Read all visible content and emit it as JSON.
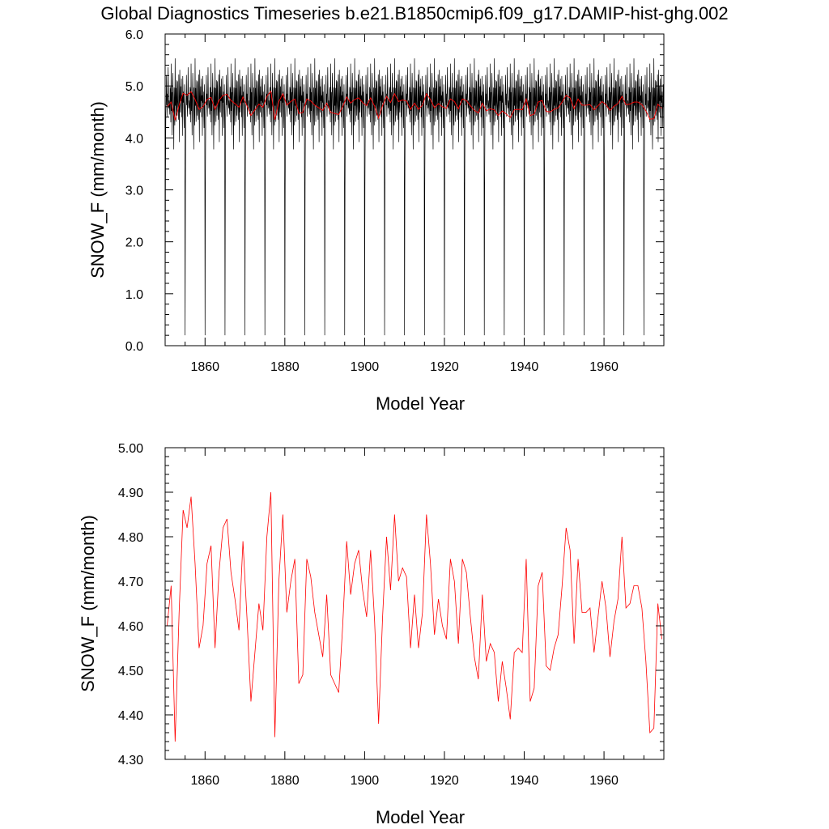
{
  "title": "Global Diagnostics Timeseries b.e21.B1850cmip6.f09_g17.DAMIP-hist-ghg.002",
  "colors": {
    "monthly": "#000000",
    "annual": "#ff0000",
    "axes": "#000000"
  },
  "chart_data": [
    {
      "type": "line",
      "xlabel": "Model Year",
      "ylabel": "SNOW_F (mm/month)",
      "xlim": [
        1850,
        1975
      ],
      "ylim": [
        0.0,
        6.0
      ],
      "xticks": [
        "1860",
        "1880",
        "1900",
        "1920",
        "1940",
        "1960"
      ],
      "yticks": [
        "0.0",
        "1.0",
        "2.0",
        "3.0",
        "4.0",
        "5.0",
        "6.0"
      ],
      "grid": false,
      "series": [
        {
          "kind": "monthly",
          "color": "#000000",
          "x_start": 1850,
          "step": 0.08333,
          "values": [
            0.2,
            3.06,
            4.42,
            4.72,
            5.21,
            4.63,
            4.85,
            4.41,
            4.78,
            5.36,
            4.82,
            4.57,
            4.72,
            4.61,
            4.45,
            4.98,
            4.92,
            4.3,
            5.43,
            4.52,
            4.88,
            4.05,
            4.79,
            5.25,
            4.84,
            4.52,
            3.78,
            4.97,
            4.68,
            4.24,
            5.53,
            4.62,
            4.96,
            4.31,
            4.77,
            5.11,
            4.43,
            5.09,
            4.71,
            4.55,
            4.35,
            5.22,
            4.76,
            3.92,
            5.31,
            4.66,
            4.49,
            4.99,
            4.71,
            5.14,
            4.4,
            4.82,
            4.04,
            5.19,
            4.68,
            4.89,
            4.55,
            4.19,
            5.03,
            4.6
          ]
        },
        {
          "kind": "annual",
          "color": "#ff0000",
          "x": [
            1850.5,
            1851.5,
            1852.5,
            1853.5,
            1854.5,
            1855.5,
            1856.5,
            1857.5,
            1858.5,
            1859.5,
            1860.5,
            1861.5,
            1862.5,
            1863.5,
            1864.5,
            1865.5,
            1866.5,
            1867.5,
            1868.5,
            1869.5,
            1870.5,
            1871.5,
            1872.5,
            1873.5,
            1874.5,
            1875.5,
            1876.5,
            1877.5,
            1878.5,
            1879.5,
            1880.5,
            1881.5,
            1882.5,
            1883.5,
            1884.5,
            1885.5,
            1886.5,
            1887.5,
            1888.5,
            1889.5,
            1890.5,
            1891.5,
            1892.5,
            1893.5,
            1894.5,
            1895.5,
            1896.5,
            1897.5,
            1898.5,
            1899.5,
            1900.5,
            1901.5,
            1902.5,
            1903.5,
            1904.5,
            1905.5,
            1906.5,
            1907.5,
            1908.5,
            1909.5,
            1910.5,
            1911.5,
            1912.5,
            1913.5,
            1914.5,
            1915.5,
            1916.5,
            1917.5,
            1918.5,
            1919.5,
            1920.5,
            1921.5,
            1922.5,
            1923.5,
            1924.5,
            1925.5,
            1926.5,
            1927.5,
            1928.5,
            1929.5,
            1930.5,
            1931.5,
            1932.5,
            1933.5,
            1934.5,
            1935.5,
            1936.5,
            1937.5,
            1938.5,
            1939.5,
            1940.5,
            1941.5,
            1942.5,
            1943.5,
            1944.5,
            1945.5,
            1946.5,
            1947.5,
            1948.5,
            1949.5,
            1950.5,
            1951.5,
            1952.5,
            1953.5,
            1954.5,
            1955.5,
            1956.5,
            1957.5,
            1958.5,
            1959.5,
            1960.5,
            1961.5,
            1962.5,
            1963.5,
            1964.5,
            1965.5,
            1966.5,
            1967.5,
            1968.5,
            1969.5,
            1970.5,
            1971.5,
            1972.5,
            1973.5,
            1974.5
          ],
          "values": [
            4.6,
            4.69,
            4.34,
            4.63,
            4.86,
            4.82,
            4.89,
            4.74,
            4.55,
            4.6,
            4.74,
            4.78,
            4.55,
            4.72,
            4.82,
            4.84,
            4.72,
            4.66,
            4.59,
            4.79,
            4.62,
            4.43,
            4.54,
            4.65,
            4.59,
            4.8,
            4.9,
            4.35,
            4.7,
            4.85,
            4.63,
            4.7,
            4.75,
            4.47,
            4.49,
            4.75,
            4.71,
            4.63,
            4.58,
            4.53,
            4.67,
            4.49,
            4.47,
            4.45,
            4.6,
            4.79,
            4.67,
            4.74,
            4.77,
            4.68,
            4.62,
            4.77,
            4.61,
            4.38,
            4.62,
            4.8,
            4.68,
            4.85,
            4.7,
            4.73,
            4.71,
            4.55,
            4.67,
            4.55,
            4.63,
            4.85,
            4.74,
            4.58,
            4.66,
            4.6,
            4.57,
            4.75,
            4.7,
            4.56,
            4.75,
            4.72,
            4.62,
            4.53,
            4.48,
            4.67,
            4.52,
            4.56,
            4.54,
            4.43,
            4.52,
            4.46,
            4.39,
            4.54,
            4.55,
            4.54,
            4.75,
            4.43,
            4.46,
            4.69,
            4.72,
            4.51,
            4.5,
            4.55,
            4.58,
            4.69,
            4.82,
            4.77,
            4.56,
            4.75,
            4.63,
            4.63,
            4.64,
            4.54,
            4.62,
            4.7,
            4.64,
            4.53,
            4.61,
            4.66,
            4.8,
            4.64,
            4.65,
            4.69,
            4.69,
            4.64,
            4.52,
            4.36,
            4.37,
            4.65,
            4.57
          ]
        }
      ]
    },
    {
      "type": "line",
      "xlabel": "Model Year",
      "ylabel": "SNOW_F (mm/month)",
      "xlim": [
        1850,
        1975
      ],
      "ylim": [
        4.3,
        5.0
      ],
      "xticks": [
        "1860",
        "1880",
        "1900",
        "1920",
        "1940",
        "1960"
      ],
      "yticks": [
        "4.30",
        "4.40",
        "4.50",
        "4.60",
        "4.70",
        "4.80",
        "4.90",
        "5.00"
      ],
      "grid": false,
      "series": [
        {
          "kind": "annual",
          "color": "#ff0000",
          "x": [
            1850.5,
            1851.5,
            1852.5,
            1853.5,
            1854.5,
            1855.5,
            1856.5,
            1857.5,
            1858.5,
            1859.5,
            1860.5,
            1861.5,
            1862.5,
            1863.5,
            1864.5,
            1865.5,
            1866.5,
            1867.5,
            1868.5,
            1869.5,
            1870.5,
            1871.5,
            1872.5,
            1873.5,
            1874.5,
            1875.5,
            1876.5,
            1877.5,
            1878.5,
            1879.5,
            1880.5,
            1881.5,
            1882.5,
            1883.5,
            1884.5,
            1885.5,
            1886.5,
            1887.5,
            1888.5,
            1889.5,
            1890.5,
            1891.5,
            1892.5,
            1893.5,
            1894.5,
            1895.5,
            1896.5,
            1897.5,
            1898.5,
            1899.5,
            1900.5,
            1901.5,
            1902.5,
            1903.5,
            1904.5,
            1905.5,
            1906.5,
            1907.5,
            1908.5,
            1909.5,
            1910.5,
            1911.5,
            1912.5,
            1913.5,
            1914.5,
            1915.5,
            1916.5,
            1917.5,
            1918.5,
            1919.5,
            1920.5,
            1921.5,
            1922.5,
            1923.5,
            1924.5,
            1925.5,
            1926.5,
            1927.5,
            1928.5,
            1929.5,
            1930.5,
            1931.5,
            1932.5,
            1933.5,
            1934.5,
            1935.5,
            1936.5,
            1937.5,
            1938.5,
            1939.5,
            1940.5,
            1941.5,
            1942.5,
            1943.5,
            1944.5,
            1945.5,
            1946.5,
            1947.5,
            1948.5,
            1949.5,
            1950.5,
            1951.5,
            1952.5,
            1953.5,
            1954.5,
            1955.5,
            1956.5,
            1957.5,
            1958.5,
            1959.5,
            1960.5,
            1961.5,
            1962.5,
            1963.5,
            1964.5,
            1965.5,
            1966.5,
            1967.5,
            1968.5,
            1969.5,
            1970.5,
            1971.5,
            1972.5,
            1973.5,
            1974.5
          ],
          "values": [
            4.6,
            4.69,
            4.34,
            4.63,
            4.86,
            4.82,
            4.89,
            4.74,
            4.55,
            4.6,
            4.74,
            4.78,
            4.55,
            4.72,
            4.82,
            4.84,
            4.72,
            4.66,
            4.59,
            4.79,
            4.62,
            4.43,
            4.54,
            4.65,
            4.59,
            4.8,
            4.9,
            4.35,
            4.7,
            4.85,
            4.63,
            4.7,
            4.75,
            4.47,
            4.49,
            4.75,
            4.71,
            4.63,
            4.58,
            4.53,
            4.67,
            4.49,
            4.47,
            4.45,
            4.6,
            4.79,
            4.67,
            4.74,
            4.77,
            4.68,
            4.62,
            4.77,
            4.61,
            4.38,
            4.62,
            4.8,
            4.68,
            4.85,
            4.7,
            4.73,
            4.71,
            4.55,
            4.67,
            4.55,
            4.63,
            4.85,
            4.74,
            4.58,
            4.66,
            4.6,
            4.57,
            4.75,
            4.7,
            4.56,
            4.75,
            4.72,
            4.62,
            4.53,
            4.48,
            4.67,
            4.52,
            4.56,
            4.54,
            4.43,
            4.52,
            4.46,
            4.39,
            4.54,
            4.55,
            4.54,
            4.75,
            4.43,
            4.46,
            4.69,
            4.72,
            4.51,
            4.5,
            4.55,
            4.58,
            4.69,
            4.82,
            4.77,
            4.56,
            4.75,
            4.63,
            4.63,
            4.64,
            4.54,
            4.62,
            4.7,
            4.64,
            4.53,
            4.61,
            4.66,
            4.8,
            4.64,
            4.65,
            4.69,
            4.69,
            4.64,
            4.52,
            4.36,
            4.37,
            4.65,
            4.57
          ]
        }
      ]
    }
  ]
}
